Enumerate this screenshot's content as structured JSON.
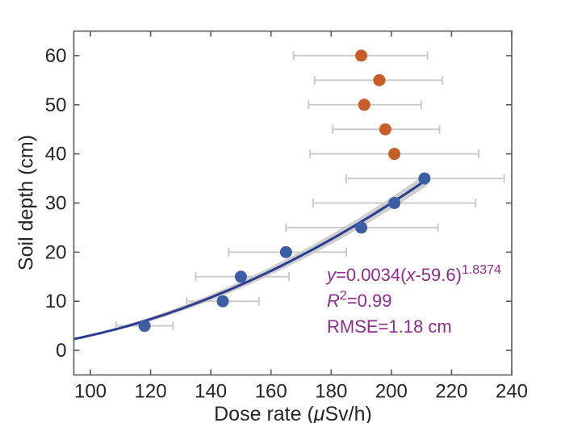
{
  "figure": {
    "background": "#ffffff"
  },
  "chart_data": {
    "type": "scatter",
    "title": "",
    "xlabel": "Dose rate (μSv/h)",
    "ylabel": "Soil depth (cm)",
    "xlim": [
      94.5,
      240
    ],
    "ylim": [
      -5,
      65
    ],
    "xticks": [
      100,
      120,
      140,
      160,
      180,
      200,
      220,
      240
    ],
    "yticks": [
      0,
      10,
      20,
      30,
      40,
      50,
      60
    ],
    "grid": false,
    "legend": "none",
    "box": true,
    "series": [
      {
        "name": "measured-points-fit-region",
        "marker_color": "#3b5ea5",
        "errorbar_color": "#cbcbcb",
        "points": [
          {
            "depth": 5,
            "dose": 118,
            "dose_lo": 108.5,
            "dose_hi": 127.5
          },
          {
            "depth": 10,
            "dose": 144,
            "dose_lo": 132,
            "dose_hi": 156
          },
          {
            "depth": 15,
            "dose": 150,
            "dose_lo": 135,
            "dose_hi": 166
          },
          {
            "depth": 20,
            "dose": 165,
            "dose_lo": 146,
            "dose_hi": 185
          },
          {
            "depth": 25,
            "dose": 190,
            "dose_lo": 165,
            "dose_hi": 215.5
          },
          {
            "depth": 30,
            "dose": 201,
            "dose_lo": 174,
            "dose_hi": 228
          },
          {
            "depth": 35,
            "dose": 211,
            "dose_lo": 185,
            "dose_hi": 237.5
          }
        ]
      },
      {
        "name": "deeper-layer-points",
        "marker_color": "#c75d28",
        "errorbar_color": "#cbcbcb",
        "points": [
          {
            "depth": 40,
            "dose": 201,
            "dose_lo": 173,
            "dose_hi": 229
          },
          {
            "depth": 45,
            "dose": 198,
            "dose_lo": 180.5,
            "dose_hi": 216
          },
          {
            "depth": 50,
            "dose": 191,
            "dose_lo": 172.5,
            "dose_hi": 210
          },
          {
            "depth": 55,
            "dose": 196,
            "dose_lo": 174.5,
            "dose_hi": 217
          },
          {
            "depth": 60,
            "dose": 190,
            "dose_lo": 167.5,
            "dose_hi": 212
          }
        ]
      }
    ],
    "fit": {
      "formula": "y=0.0034(x-59.6)^1.8374",
      "a": 0.0034,
      "x0": 59.6,
      "b": 1.8374,
      "x_start": 94.5,
      "x_end": 212.3,
      "band_x_start": 112,
      "curve_color": "#2d3b90",
      "band_color": "#c3c3c3"
    },
    "annotation_lines": [
      "y=0.0034(x-59.6)^1.8374",
      "R^2=0.99",
      "RMSE=1.18 cm"
    ]
  },
  "labels": {
    "ylabel": "Soil depth (cm)",
    "xlabel_pre": "Dose rate (",
    "xlabel_mu": "μ",
    "xlabel_post": "Sv/h)"
  },
  "annotation": {
    "color": "#8e2b8e",
    "eq_y": "y",
    "eq_eq": "=0.0034(",
    "eq_x": "x",
    "eq_tail": "-59.6)",
    "eq_exp": "1.8374",
    "r2_sym": "R",
    "r2_sup": "2",
    "r2_val": "=0.99",
    "rmse": "RMSE=1.18 cm"
  },
  "axis_style": {
    "spine_color": "#5a5a5a",
    "tick_label_color": "#262626",
    "tick_font_size": 24
  }
}
